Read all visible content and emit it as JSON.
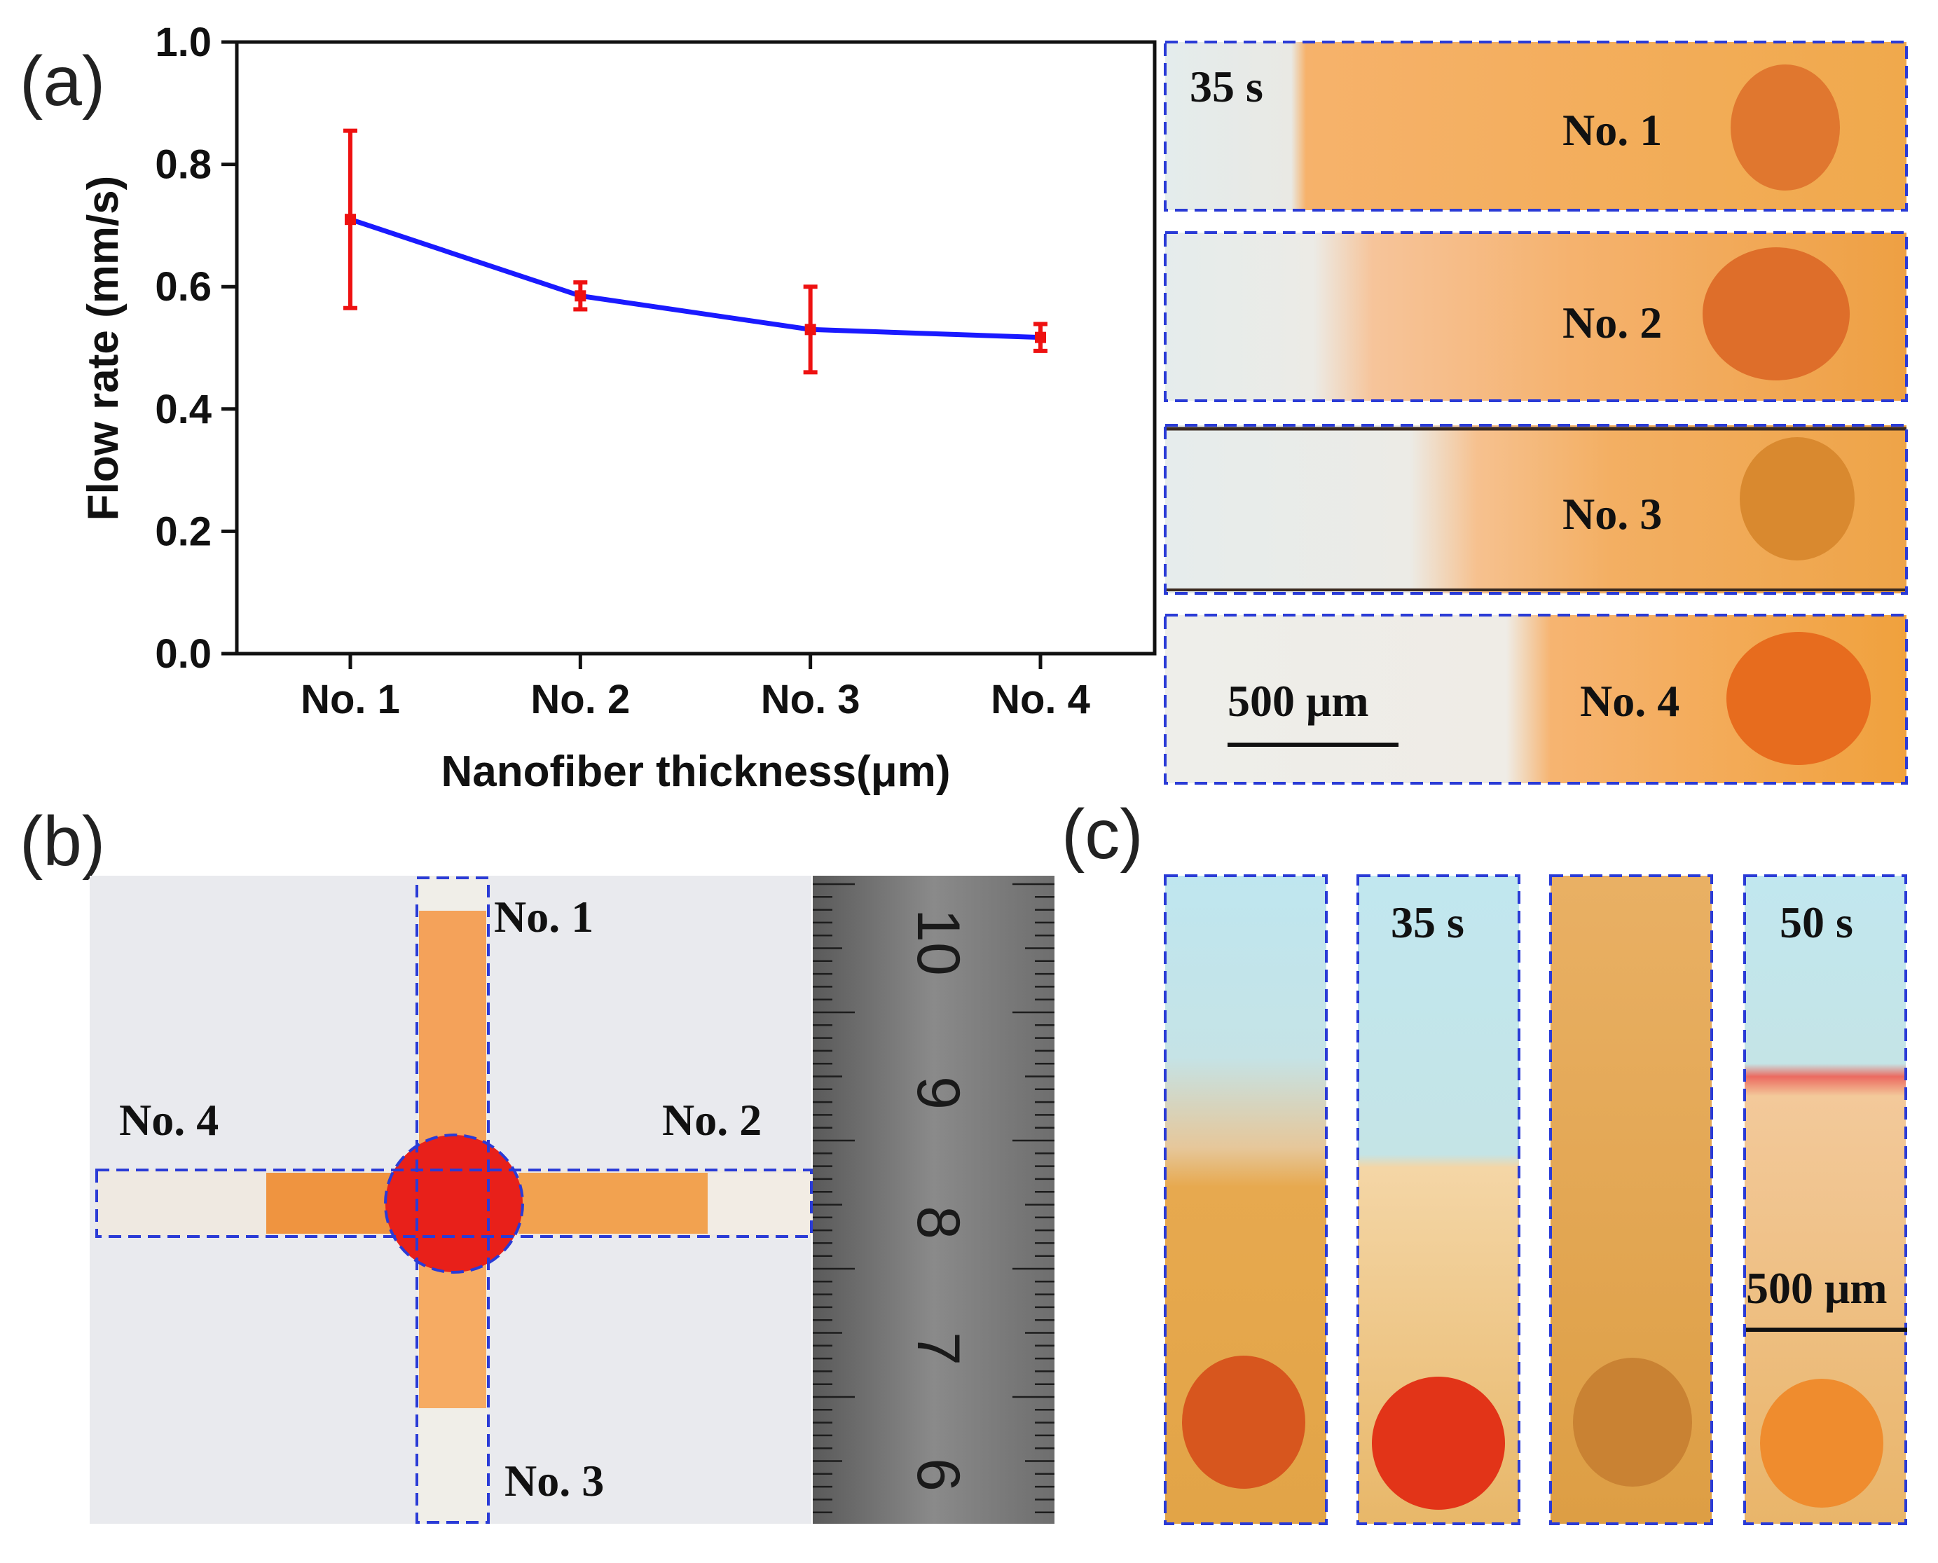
{
  "panel_labels": [
    "(a)",
    "(b)",
    "(c)"
  ],
  "chart_data": {
    "type": "line",
    "title": "",
    "xlabel": "Nanofiber thickness(μm)",
    "ylabel": "Flow rate (mm/s)",
    "categories": [
      "No. 1",
      "No. 2",
      "No. 3",
      "No. 4"
    ],
    "series": [
      {
        "values": [
          0.71,
          0.585,
          0.53,
          0.517
        ],
        "errors": [
          0.145,
          0.022,
          0.07,
          0.022
        ]
      }
    ],
    "ylim": [
      0.0,
      1.0
    ],
    "yticks": [
      "0.0",
      "0.2",
      "0.4",
      "0.6",
      "0.8",
      "1.0"
    ],
    "line_color": "#1a1aff",
    "error_color": "#ee1111",
    "grid": false
  },
  "panel_a_images": {
    "time_label": "35 s",
    "strips": [
      "No. 1",
      "No. 2",
      "No. 3",
      "No. 4"
    ],
    "scale_bar": "500 μm"
  },
  "panel_b": {
    "arms": {
      "top": "No. 1",
      "right": "No. 2",
      "bottom": "No. 3",
      "left": "No. 4"
    },
    "ruler_numbers": [
      "10",
      "9",
      "8",
      "7",
      "6"
    ]
  },
  "panel_c": {
    "time_labels": [
      "35 s",
      "50 s"
    ],
    "scale_bar": "500 μm"
  },
  "colors": {
    "border_dash": "#2a3bd6",
    "orange_fluid": "#f29a3a",
    "red_drop": "#e8201a",
    "ruler_metal": "#7b7b7b"
  }
}
